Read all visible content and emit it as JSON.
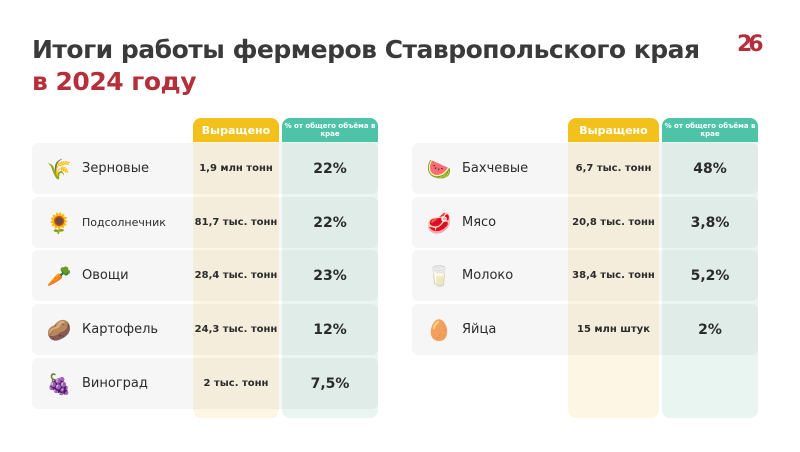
{
  "title": {
    "line1": "Итоги работы фермеров Ставропольского края",
    "line2": "в 2024 году"
  },
  "logo": "26",
  "headers": {
    "grown": "Выращено",
    "share": "% от общего объёма в крае"
  },
  "left": [
    {
      "icon": "wheat-icon",
      "glyph": "🌾",
      "name": "Зерновые",
      "value": "1,9 млн тонн",
      "pct": "22%"
    },
    {
      "icon": "sunflower-icon",
      "glyph": "🌻",
      "name": "Подсолнечник",
      "value": "81,7 тыс. тонн",
      "pct": "22%"
    },
    {
      "icon": "vegetables-icon",
      "glyph": "🥕",
      "name": "Овощи",
      "value": "28,4 тыс. тонн",
      "pct": "23%"
    },
    {
      "icon": "potato-icon",
      "glyph": "🥔",
      "name": "Картофель",
      "value": "24,3 тыс. тонн",
      "pct": "12%"
    },
    {
      "icon": "grapes-icon",
      "glyph": "🍇",
      "name": "Виноград",
      "value": "2 тыс. тонн",
      "pct": "7,5%"
    }
  ],
  "right": [
    {
      "icon": "watermelon-icon",
      "glyph": "🍉",
      "name": "Бахчевые",
      "value": "6,7 тыс. тонн",
      "pct": "48%"
    },
    {
      "icon": "meat-icon",
      "glyph": "🥩",
      "name": "Мясо",
      "value": "20,8 тыс. тонн",
      "pct": "3,8%"
    },
    {
      "icon": "milk-icon",
      "glyph": "🥛",
      "name": "Молоко",
      "value": "38,4 тыс. тонн",
      "pct": "5,2%"
    },
    {
      "icon": "egg-icon",
      "glyph": "🥚",
      "name": "Яйца",
      "value": "15 млн штук",
      "pct": "2%"
    }
  ]
}
